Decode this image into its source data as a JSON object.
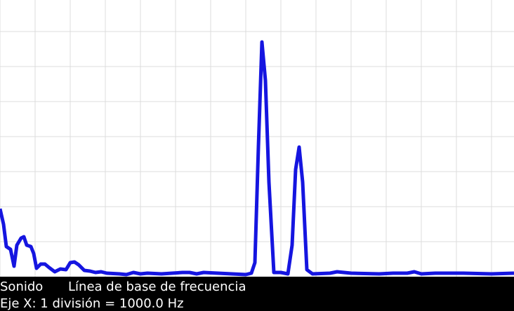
{
  "chart_data": {
    "type": "line",
    "x": [
      0,
      100,
      180,
      300,
      400,
      480,
      600,
      680,
      760,
      880,
      960,
      1040,
      1160,
      1280,
      1400,
      1560,
      1720,
      1880,
      2000,
      2120,
      2240,
      2400,
      2560,
      2720,
      2880,
      3040,
      3400,
      3600,
      3800,
      4000,
      4200,
      4600,
      5200,
      5400,
      5600,
      5800,
      6200,
      6600,
      7000,
      7160,
      7260,
      7360,
      7460,
      7560,
      7660,
      7800,
      8000,
      8200,
      8320,
      8420,
      8520,
      8620,
      8740,
      8900,
      9400,
      9600,
      10000,
      10800,
      11200,
      11600,
      11800,
      12000,
      12400,
      13200,
      14000,
      14640
    ],
    "series": [
      {
        "color": "#1515e0",
        "values": [
          1.94,
          1.5,
          0.86,
          0.78,
          0.3,
          0.9,
          1.1,
          1.14,
          0.9,
          0.86,
          0.66,
          0.24,
          0.36,
          0.36,
          0.26,
          0.14,
          0.22,
          0.2,
          0.4,
          0.42,
          0.34,
          0.18,
          0.16,
          0.12,
          0.14,
          0.1,
          0.08,
          0.06,
          0.12,
          0.08,
          0.1,
          0.08,
          0.12,
          0.12,
          0.08,
          0.12,
          0.1,
          0.08,
          0.06,
          0.1,
          0.4,
          3.7,
          6.7,
          5.6,
          2.7,
          0.12,
          0.12,
          0.08,
          0.9,
          3.06,
          3.7,
          2.7,
          0.2,
          0.08,
          0.1,
          0.14,
          0.1,
          0.08,
          0.1,
          0.1,
          0.14,
          0.08,
          0.1,
          0.1,
          0.08,
          0.1
        ]
      }
    ],
    "xlim": [
      0,
      14640
    ],
    "ylim": [
      0,
      7.9
    ],
    "xticks": [
      0,
      1000,
      2000,
      3000,
      4000,
      5000,
      6000,
      7000,
      8000,
      9000,
      10000,
      11000,
      12000,
      13000,
      14000
    ],
    "yticks": [
      1,
      2,
      3,
      4,
      5,
      6,
      7
    ],
    "grid": true
  },
  "status_bar": {
    "tabs": [
      "Sonido",
      "Línea de base de frecuencia"
    ],
    "caption": "Eje X: 1 división = 1000.0 Hz"
  }
}
